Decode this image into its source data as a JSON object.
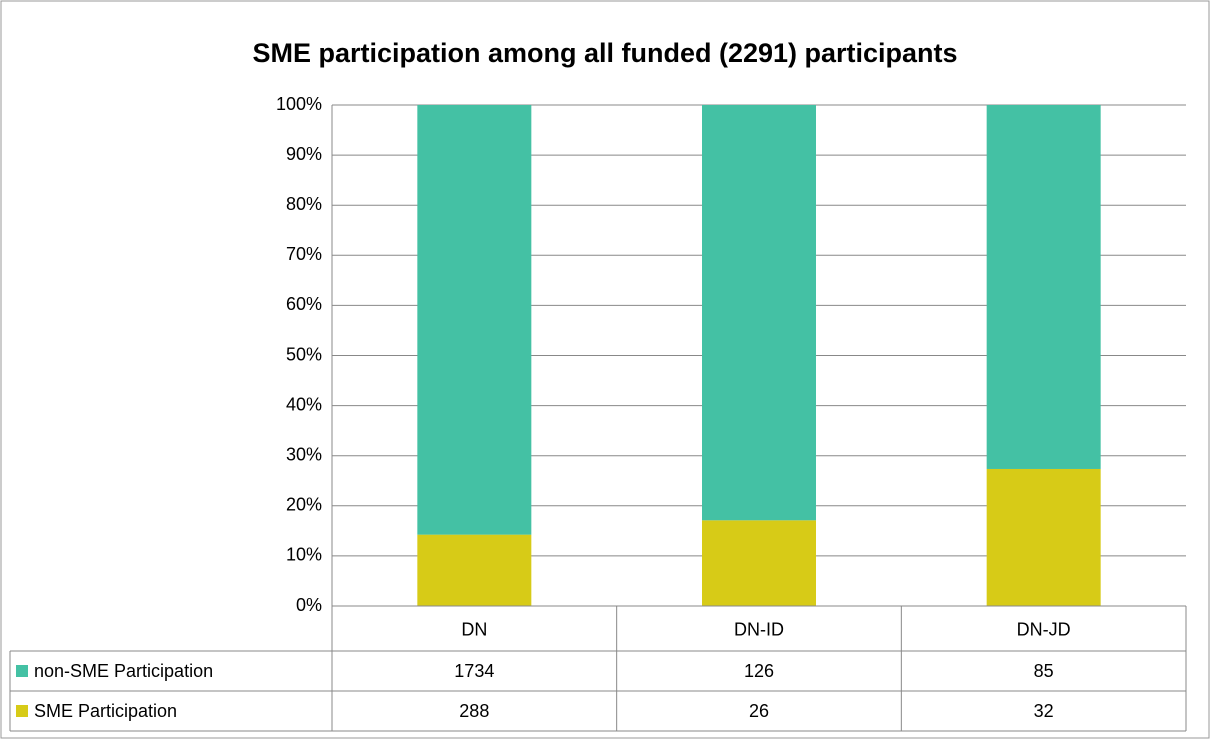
{
  "chart_data": {
    "type": "bar",
    "stacking": "percent",
    "title": "SME participation among all funded (2291) participants",
    "categories": [
      "DN",
      "DN-ID",
      "DN-JD"
    ],
    "series": [
      {
        "name": "non-SME Participation",
        "color": "#44c1a4",
        "values": [
          1734,
          126,
          85
        ]
      },
      {
        "name": "SME Participation",
        "color": "#d7cb17",
        "values": [
          288,
          26,
          32
        ]
      }
    ],
    "ylim": [
      0,
      100
    ],
    "yticks": [
      {
        "value": 0,
        "label": "0%"
      },
      {
        "value": 10,
        "label": "10%"
      },
      {
        "value": 20,
        "label": "20%"
      },
      {
        "value": 30,
        "label": "30%"
      },
      {
        "value": 40,
        "label": "40%"
      },
      {
        "value": 50,
        "label": "50%"
      },
      {
        "value": 60,
        "label": "60%"
      },
      {
        "value": 70,
        "label": "70%"
      },
      {
        "value": 80,
        "label": "80%"
      },
      {
        "value": 90,
        "label": "90%"
      },
      {
        "value": 100,
        "label": "100%"
      }
    ],
    "grid": true
  }
}
